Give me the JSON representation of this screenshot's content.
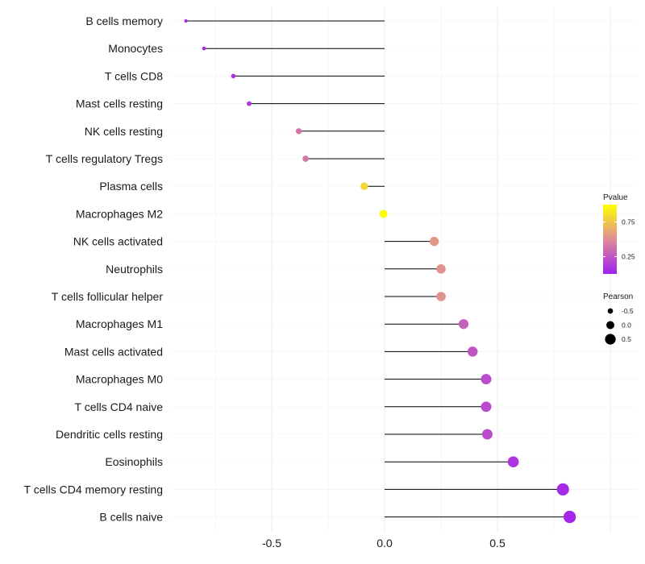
{
  "chart_data": {
    "type": "lollipop",
    "categories": [
      "B cells memory",
      "Monocytes",
      "T cells CD8",
      "Mast cells resting",
      "NK cells resting",
      "T cells regulatory  Tregs",
      "Plasma cells",
      "Macrophages M2",
      "NK cells activated",
      "Neutrophils",
      "T cells follicular helper",
      "Macrophages M1",
      "Mast cells activated",
      "Macrophages M0",
      "T cells CD4 naive",
      "Dendritic cells resting",
      "Eosinophils",
      "T cells CD4 memory resting",
      "B cells naive"
    ],
    "pearson": [
      -0.88,
      -0.8,
      -0.67,
      -0.6,
      -0.38,
      -0.35,
      -0.09,
      -0.005,
      0.22,
      0.25,
      0.25,
      0.35,
      0.39,
      0.45,
      0.45,
      0.455,
      0.57,
      0.79,
      0.82
    ],
    "pvalue": [
      0.02,
      0.05,
      0.08,
      0.12,
      0.38,
      0.4,
      0.82,
      0.99,
      0.55,
      0.52,
      0.52,
      0.3,
      0.25,
      0.2,
      0.2,
      0.2,
      0.1,
      0.04,
      0.03
    ],
    "xlim": [
      -0.95,
      0.85
    ],
    "xticks": [
      -0.5,
      0.0,
      0.5
    ],
    "xtick_labels": [
      "-0.5",
      "0.0",
      "0.5"
    ],
    "xlabel": "",
    "ylabel": "",
    "grid": true,
    "color_scale": {
      "low": "#a020f0",
      "mid": "#e08c96",
      "high": "#ffff00"
    },
    "legend_pvalue": {
      "title": "Pvalue",
      "ticks": [
        0.25,
        0.75
      ],
      "tick_labels": [
        "0.25",
        "0.75"
      ],
      "range": [
        0.0,
        1.0
      ]
    },
    "legend_pearson": {
      "title": "Pearson",
      "values": [
        -0.5,
        0.0,
        0.5
      ],
      "labels": [
        "-0.5",
        "0.0",
        "0.5"
      ]
    }
  }
}
